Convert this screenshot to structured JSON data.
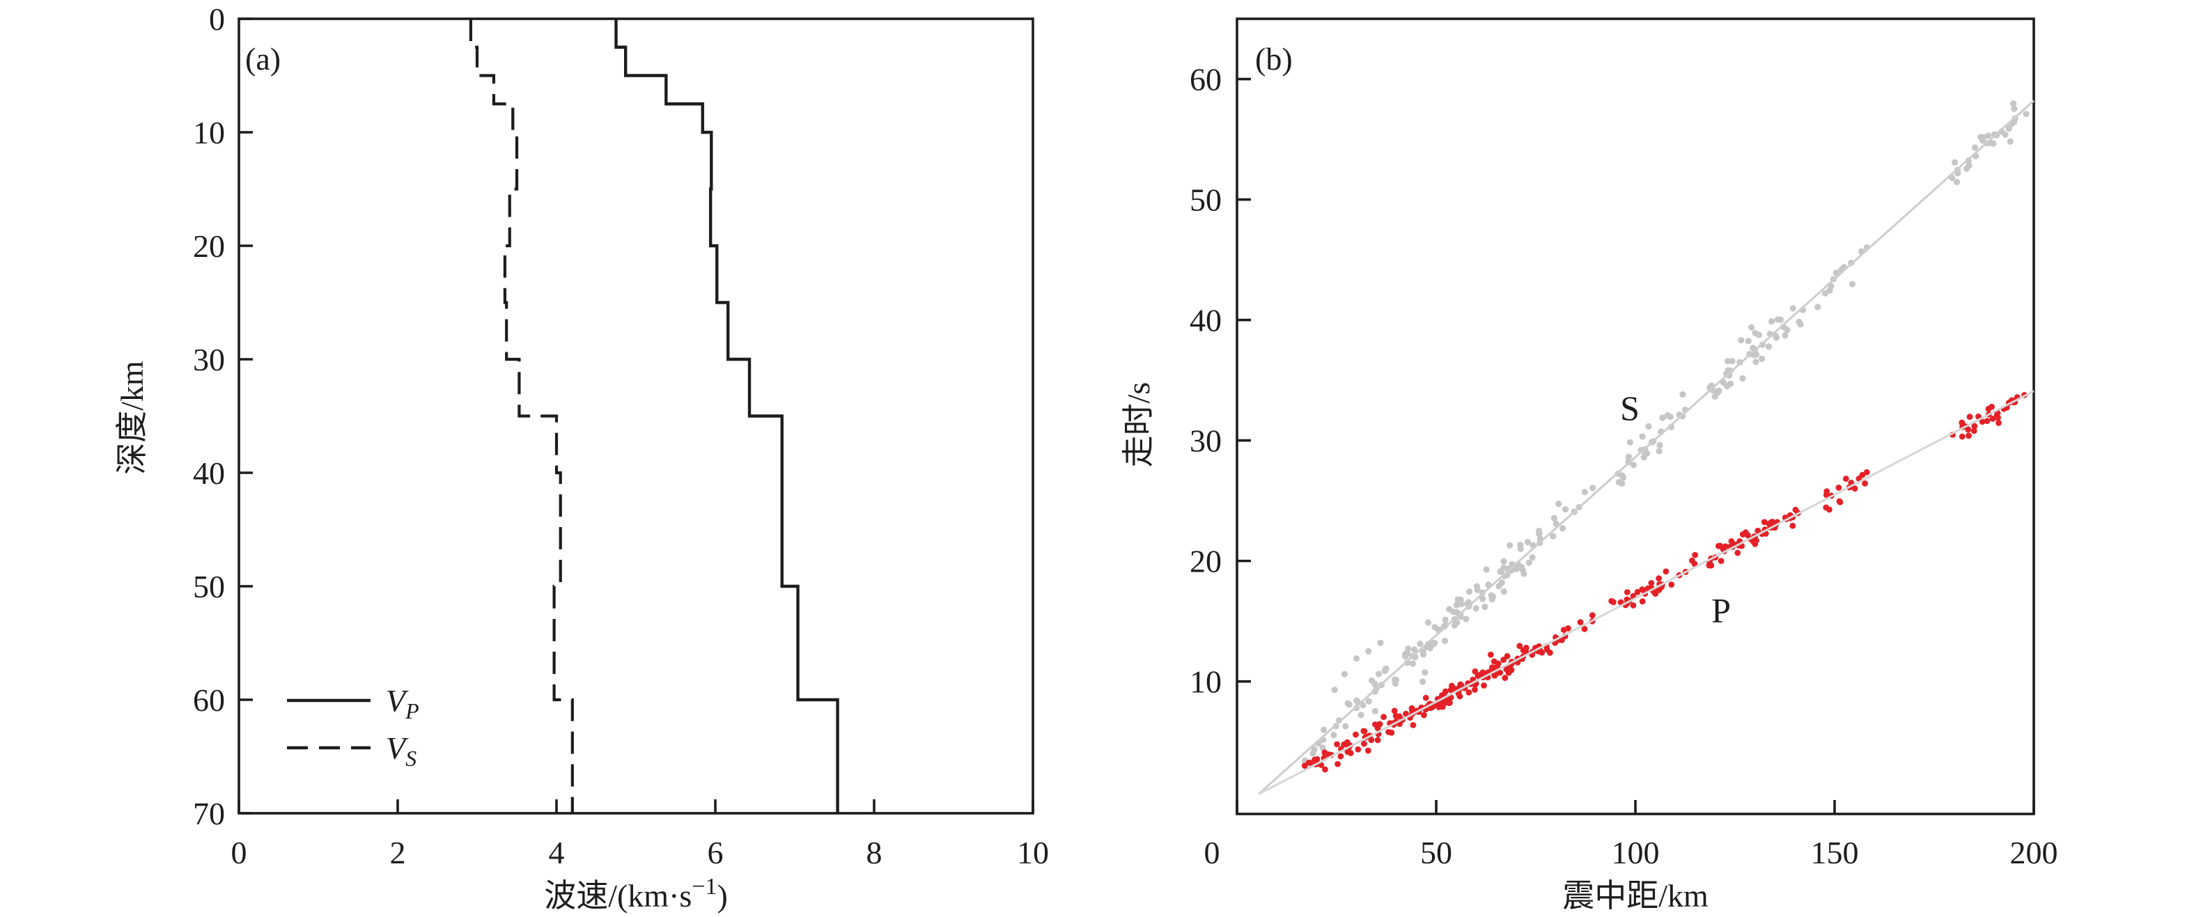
{
  "page": {
    "background": "#ffffff",
    "ink": "#1d1d1d"
  },
  "chart_data": [
    {
      "panel": "a",
      "type": "line",
      "title": "(a)",
      "xlabel": "波速/(km·s⁻¹)",
      "xlabel_parts": {
        "pre": "波速/(km·s",
        "sup": "−1",
        "post": ")"
      },
      "ylabel": "深度/km",
      "xlim": [
        0,
        10
      ],
      "ylim": [
        70,
        0
      ],
      "xticks": [
        0,
        2,
        4,
        6,
        8,
        10
      ],
      "yticks": [
        0,
        10,
        20,
        30,
        40,
        50,
        60,
        70
      ],
      "grid": false,
      "legend": {
        "position": "lower-left",
        "entries": [
          {
            "label": "V",
            "sub": "P",
            "line": "solid"
          },
          {
            "label": "V",
            "sub": "S",
            "line": "dashed"
          }
        ]
      },
      "series": [
        {
          "name": "VP",
          "style": "solid",
          "layer_top_depth_km": [
            0,
            2.5,
            5,
            7.5,
            10,
            15,
            20,
            25,
            30,
            35,
            50,
            60
          ],
          "velocity_km_s": [
            4.75,
            4.87,
            5.38,
            5.84,
            5.95,
            5.94,
            6.02,
            6.16,
            6.43,
            6.84,
            7.04,
            7.54
          ],
          "profile_bottom_km": 70
        },
        {
          "name": "VS",
          "style": "dashed",
          "layer_top_depth_km": [
            0,
            2.5,
            5,
            7.5,
            10,
            15,
            20,
            25,
            30,
            35,
            40,
            50,
            60
          ],
          "velocity_km_s": [
            2.92,
            3.0,
            3.21,
            3.45,
            3.5,
            3.41,
            3.35,
            3.37,
            3.53,
            4.0,
            4.05,
            3.97,
            4.2
          ],
          "profile_bottom_km": 70
        }
      ]
    },
    {
      "panel": "b",
      "type": "scatter",
      "title": "(b)",
      "xlabel": "震中距/km",
      "ylabel": "走时/s",
      "xlim": [
        0,
        200
      ],
      "ylim": [
        -1,
        65
      ],
      "xticks": [
        0,
        50,
        100,
        150,
        200
      ],
      "yticks": [
        10,
        20,
        30,
        40,
        50,
        60
      ],
      "grid": false,
      "seed": 11,
      "series": [
        {
          "name": "S",
          "color": "#c6c6c6",
          "marker_radius": 4.6,
          "fit_line": {
            "x1_km": 5.4,
            "t1_s": 0.64,
            "x2_km": 200,
            "t2_s": 58.2,
            "color": "#cdcdcd",
            "width": 3
          },
          "slope_s_per_km": 0.2955,
          "origin": [
            5.4,
            0.64
          ],
          "noise_sigma_t_s": 0.75,
          "cluster_halfwidth_km": 2.3,
          "clusters_distance_count": [
            [
              19,
              3
            ],
            [
              22,
              4
            ],
            [
              26,
              5
            ],
            [
              30,
              6
            ],
            [
              34,
              7
            ],
            [
              38,
              6
            ],
            [
              42,
              8
            ],
            [
              46,
              9
            ],
            [
              50,
              10
            ],
            [
              54,
              10
            ],
            [
              58,
              11
            ],
            [
              62,
              10
            ],
            [
              66,
              10
            ],
            [
              70,
              9
            ],
            [
              74,
              8
            ],
            [
              78,
              6
            ],
            [
              83,
              4
            ],
            [
              88,
              3
            ],
            [
              96,
              5
            ],
            [
              100,
              7
            ],
            [
              104,
              7
            ],
            [
              108,
              6
            ],
            [
              113,
              4
            ],
            [
              120,
              7
            ],
            [
              124,
              8
            ],
            [
              128,
              9
            ],
            [
              132,
              8
            ],
            [
              136,
              7
            ],
            [
              140,
              5
            ],
            [
              148,
              4
            ],
            [
              152,
              5
            ],
            [
              156,
              4
            ],
            [
              181,
              5
            ],
            [
              185,
              7
            ],
            [
              189,
              7
            ],
            [
              193,
              6
            ],
            [
              196,
              4
            ]
          ],
          "extra_points_km_s": [
            [
              24.5,
              9.3
            ],
            [
              27,
              10.6
            ],
            [
              30,
              11.9
            ],
            [
              33,
              12.5
            ],
            [
              36,
              13.2
            ]
          ],
          "annotation": {
            "text": "S",
            "x_km": 98.6,
            "t_s": 32.7
          }
        },
        {
          "name": "P",
          "color": "#e42127",
          "marker_radius": 4.4,
          "fit_line": {
            "x1_km": 5.4,
            "t1_s": 0.64,
            "x2_km": 200,
            "t2_s": 34.1,
            "color": "#d6d6d6",
            "width": 3
          },
          "slope_s_per_km": 0.172,
          "origin": [
            5.4,
            0.64
          ],
          "noise_sigma_t_s": 0.45,
          "cluster_halfwidth_km": 2.2,
          "clusters_distance_count": [
            [
              19,
              4
            ],
            [
              22,
              5
            ],
            [
              26,
              7
            ],
            [
              30,
              8
            ],
            [
              34,
              9
            ],
            [
              38,
              8
            ],
            [
              42,
              10
            ],
            [
              46,
              12
            ],
            [
              50,
              14
            ],
            [
              54,
              13
            ],
            [
              58,
              14
            ],
            [
              62,
              13
            ],
            [
              66,
              12
            ],
            [
              70,
              11
            ],
            [
              74,
              9
            ],
            [
              78,
              7
            ],
            [
              83,
              5
            ],
            [
              88,
              4
            ],
            [
              96,
              6
            ],
            [
              100,
              8
            ],
            [
              104,
              8
            ],
            [
              108,
              7
            ],
            [
              113,
              5
            ],
            [
              120,
              8
            ],
            [
              124,
              10
            ],
            [
              128,
              11
            ],
            [
              132,
              10
            ],
            [
              136,
              9
            ],
            [
              140,
              6
            ],
            [
              148,
              5
            ],
            [
              152,
              6
            ],
            [
              156,
              5
            ],
            [
              181,
              5
            ],
            [
              185,
              7
            ],
            [
              189,
              8
            ],
            [
              193,
              7
            ],
            [
              196,
              5
            ]
          ],
          "extra_points_km_s": [
            [
              17,
              3.0
            ],
            [
              19.5,
              3.5
            ],
            [
              22,
              4.1
            ]
          ],
          "annotation": {
            "text": "P",
            "x_km": 121.5,
            "t_s": 15.9
          }
        }
      ]
    }
  ],
  "layout_note": "left panel: crustal velocity model; right panel: P and S travel-time picks with straight-line fits"
}
